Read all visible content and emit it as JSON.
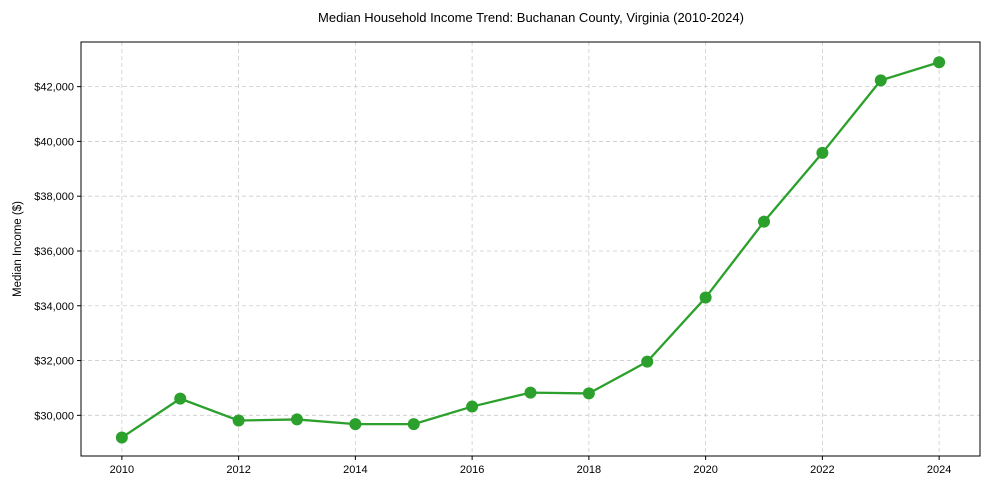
{
  "chart_data": {
    "type": "line",
    "title": "Median Household Income Trend: Buchanan County, Virginia (2010-2024)",
    "xlabel": "",
    "ylabel": "Median Income ($)",
    "x": [
      2010,
      2011,
      2012,
      2013,
      2014,
      2015,
      2016,
      2017,
      2018,
      2019,
      2020,
      2021,
      2022,
      2023,
      2024
    ],
    "series": [
      {
        "name": "Median Income",
        "color": "#2ca02c",
        "values": [
          29190,
          30610,
          29810,
          29850,
          29680,
          29680,
          30320,
          30830,
          30800,
          31960,
          34300,
          37070,
          39580,
          42230,
          42890
        ]
      }
    ],
    "xlim": [
      2009.3,
      2024.7
    ],
    "ylim": [
      28515,
      43630
    ],
    "xticks": [
      2010,
      2012,
      2014,
      2016,
      2018,
      2020,
      2022,
      2024
    ],
    "xtick_labels": [
      "2010",
      "2012",
      "2014",
      "2016",
      "2018",
      "2020",
      "2022",
      "2024"
    ],
    "yticks": [
      30000,
      32000,
      34000,
      36000,
      38000,
      40000,
      42000
    ],
    "ytick_labels": [
      "$30,000",
      "$32,000",
      "$34,000",
      "$36,000",
      "$38,000",
      "$40,000",
      "$42,000"
    ],
    "grid": true,
    "legend": "none"
  }
}
